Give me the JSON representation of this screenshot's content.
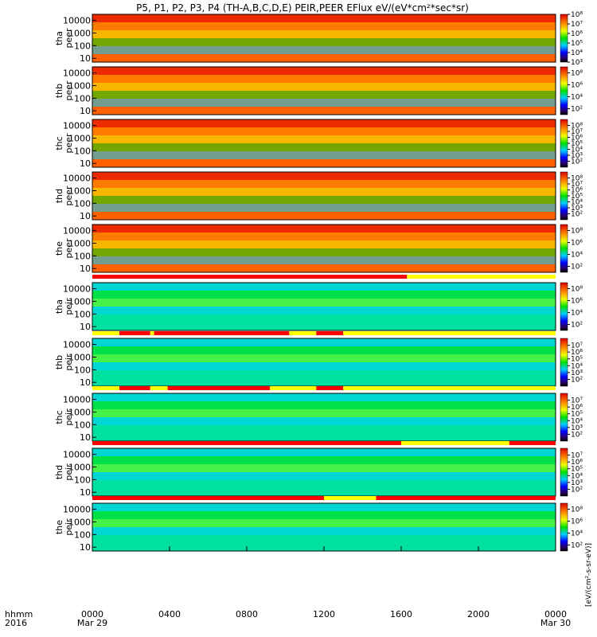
{
  "title": "P5, P1, P2, P3, P4 (TH-A,B,C,D,E) PEIR,PEER EFlux eV/(eV*cm²*sec*sr)",
  "colorbar_unit_label": "[eV/(cm²-s-sr-eV)]",
  "xaxis": {
    "row1_label": "hhmm",
    "row2_label": "2016",
    "ticks": [
      "0000",
      "0400",
      "0800",
      "1200",
      "1600",
      "2000",
      "0000"
    ],
    "date_labels": [
      {
        "at": 0,
        "text": "Mar 29"
      },
      {
        "at": 24,
        "text": "Mar 30"
      }
    ]
  },
  "chart_data": [
    {
      "type": "heatmap",
      "probe": "tha",
      "species": "peer",
      "label": [
        "tha",
        "peer"
      ],
      "xlim": [
        0,
        24
      ],
      "ylim": [
        5,
        30000
      ],
      "yscale": "log",
      "yticks": [
        "10",
        "100",
        "1000",
        "10000"
      ],
      "colorbar": {
        "ticks": [
          "10⁸",
          "10⁷",
          "10⁶",
          "10⁵",
          "10⁴",
          "10³"
        ],
        "range": [
          1000,
          100000000
        ]
      }
    },
    {
      "type": "heatmap",
      "probe": "thb",
      "species": "peer",
      "label": [
        "thb",
        "peer"
      ],
      "xlim": [
        0,
        24
      ],
      "ylim": [
        5,
        30000
      ],
      "yscale": "log",
      "yticks": [
        "10",
        "100",
        "1000",
        "10000"
      ],
      "colorbar": {
        "ticks": [
          "10⁸",
          "10⁶",
          "10⁴",
          "10²"
        ],
        "range": [
          10,
          1000000000
        ]
      }
    },
    {
      "type": "heatmap",
      "probe": "thc",
      "species": "peer",
      "label": [
        "thc",
        "peer"
      ],
      "xlim": [
        0,
        24
      ],
      "ylim": [
        5,
        30000
      ],
      "yscale": "log",
      "yticks": [
        "10",
        "100",
        "1000",
        "10000"
      ],
      "colorbar": {
        "ticks": [
          "10⁸",
          "10⁷",
          "10⁶",
          "10⁵",
          "10⁴",
          "10³",
          "10²"
        ],
        "range": [
          10,
          1000000000
        ]
      }
    },
    {
      "type": "heatmap",
      "probe": "thd",
      "species": "peer",
      "label": [
        "thd",
        "peer"
      ],
      "xlim": [
        0,
        24
      ],
      "ylim": [
        5,
        30000
      ],
      "yscale": "log",
      "yticks": [
        "10",
        "100",
        "1000",
        "10000"
      ],
      "colorbar": {
        "ticks": [
          "10⁸",
          "10⁷",
          "10⁶",
          "10⁵",
          "10⁴",
          "10³",
          "10²"
        ],
        "range": [
          10,
          1000000000
        ]
      }
    },
    {
      "type": "heatmap",
      "probe": "the",
      "species": "peer",
      "label": [
        "the",
        "peer"
      ],
      "xlim": [
        0,
        24
      ],
      "ylim": [
        5,
        30000
      ],
      "yscale": "log",
      "yticks": [
        "10",
        "100",
        "1000",
        "10000"
      ],
      "colorbar": {
        "ticks": [
          "10⁸",
          "10⁶",
          "10⁴",
          "10²"
        ],
        "range": [
          10,
          1000000000
        ]
      }
    },
    {
      "type": "heatmap",
      "probe": "tha",
      "species": "peir",
      "label": [
        "tha",
        "peir"
      ],
      "xlim": [
        0,
        24
      ],
      "ylim": [
        5,
        30000
      ],
      "yscale": "log",
      "yticks": [
        "10",
        "100",
        "1000",
        "10000"
      ],
      "colorbar": {
        "ticks": [
          "10⁸",
          "10⁶",
          "10⁴",
          "10²"
        ],
        "range": [
          10,
          1000000000
        ]
      }
    },
    {
      "type": "heatmap",
      "probe": "thb",
      "species": "peir",
      "label": [
        "thb",
        "peir"
      ],
      "xlim": [
        0,
        24
      ],
      "ylim": [
        5,
        30000
      ],
      "yscale": "log",
      "yticks": [
        "10",
        "100",
        "1000",
        "10000"
      ],
      "colorbar": {
        "ticks": [
          "10⁷",
          "10⁶",
          "10⁵",
          "10⁴",
          "10³",
          "10²"
        ],
        "range": [
          10,
          100000000
        ]
      }
    },
    {
      "type": "heatmap",
      "probe": "thc",
      "species": "peir",
      "label": [
        "thc",
        "peir"
      ],
      "xlim": [
        0,
        24
      ],
      "ylim": [
        5,
        30000
      ],
      "yscale": "log",
      "yticks": [
        "10",
        "100",
        "1000",
        "10000"
      ],
      "colorbar": {
        "ticks": [
          "10⁷",
          "10⁶",
          "10⁵",
          "10⁴",
          "10³",
          "10²"
        ],
        "range": [
          10,
          100000000
        ]
      }
    },
    {
      "type": "heatmap",
      "probe": "thd",
      "species": "peir",
      "label": [
        "thd",
        "peir"
      ],
      "xlim": [
        0,
        24
      ],
      "ylim": [
        5,
        30000
      ],
      "yscale": "log",
      "yticks": [
        "10",
        "100",
        "1000",
        "10000"
      ],
      "colorbar": {
        "ticks": [
          "10⁷",
          "10⁶",
          "10⁵",
          "10⁴",
          "10³",
          "10²"
        ],
        "range": [
          10,
          100000000
        ]
      }
    },
    {
      "type": "heatmap",
      "probe": "the",
      "species": "peir",
      "label": [
        "the",
        "peir"
      ],
      "xlim": [
        0,
        24
      ],
      "ylim": [
        5,
        30000
      ],
      "yscale": "log",
      "yticks": [
        "10",
        "100",
        "1000",
        "10000"
      ],
      "colorbar": {
        "ticks": [
          "10⁸",
          "10⁶",
          "10⁴",
          "10²"
        ],
        "range": [
          10,
          1000000000
        ]
      }
    }
  ],
  "mode_bars": [
    {
      "segments": [
        {
          "x0": 0,
          "x1": 16.3,
          "color": "#ff0000"
        },
        {
          "x0": 16.3,
          "x1": 24,
          "color": "#ffff00"
        }
      ]
    },
    {
      "segments": [
        {
          "x0": 0,
          "x1": 1.4,
          "color": "#ffff00"
        },
        {
          "x0": 1.4,
          "x1": 3.0,
          "color": "#ff0000"
        },
        {
          "x0": 3.0,
          "x1": 3.2,
          "color": "#ffff00"
        },
        {
          "x0": 3.2,
          "x1": 10.2,
          "color": "#ff0000"
        },
        {
          "x0": 10.2,
          "x1": 11.6,
          "color": "#ffff00"
        },
        {
          "x0": 11.6,
          "x1": 13.0,
          "color": "#ff0000"
        },
        {
          "x0": 13.0,
          "x1": 24,
          "color": "#ffff00"
        }
      ]
    },
    {
      "segments": [
        {
          "x0": 0,
          "x1": 1.4,
          "color": "#ffff00"
        },
        {
          "x0": 1.4,
          "x1": 3.0,
          "color": "#ff0000"
        },
        {
          "x0": 3.0,
          "x1": 3.9,
          "color": "#ffff00"
        },
        {
          "x0": 3.9,
          "x1": 9.2,
          "color": "#ff0000"
        },
        {
          "x0": 9.2,
          "x1": 11.6,
          "color": "#ffff00"
        },
        {
          "x0": 11.6,
          "x1": 13.0,
          "color": "#ff0000"
        },
        {
          "x0": 13.0,
          "x1": 24,
          "color": "#ffff00"
        }
      ]
    },
    {
      "segments": [
        {
          "x0": 0,
          "x1": 16.0,
          "color": "#ff0000"
        },
        {
          "x0": 16.0,
          "x1": 21.6,
          "color": "#ffff00"
        },
        {
          "x0": 21.6,
          "x1": 24,
          "color": "#ff0000"
        }
      ]
    },
    {
      "segments": [
        {
          "x0": 0,
          "x1": 12.0,
          "color": "#ff0000"
        },
        {
          "x0": 12.0,
          "x1": 14.7,
          "color": "#ffff00"
        },
        {
          "x0": 14.7,
          "x1": 24,
          "color": "#ff0000"
        }
      ]
    }
  ]
}
